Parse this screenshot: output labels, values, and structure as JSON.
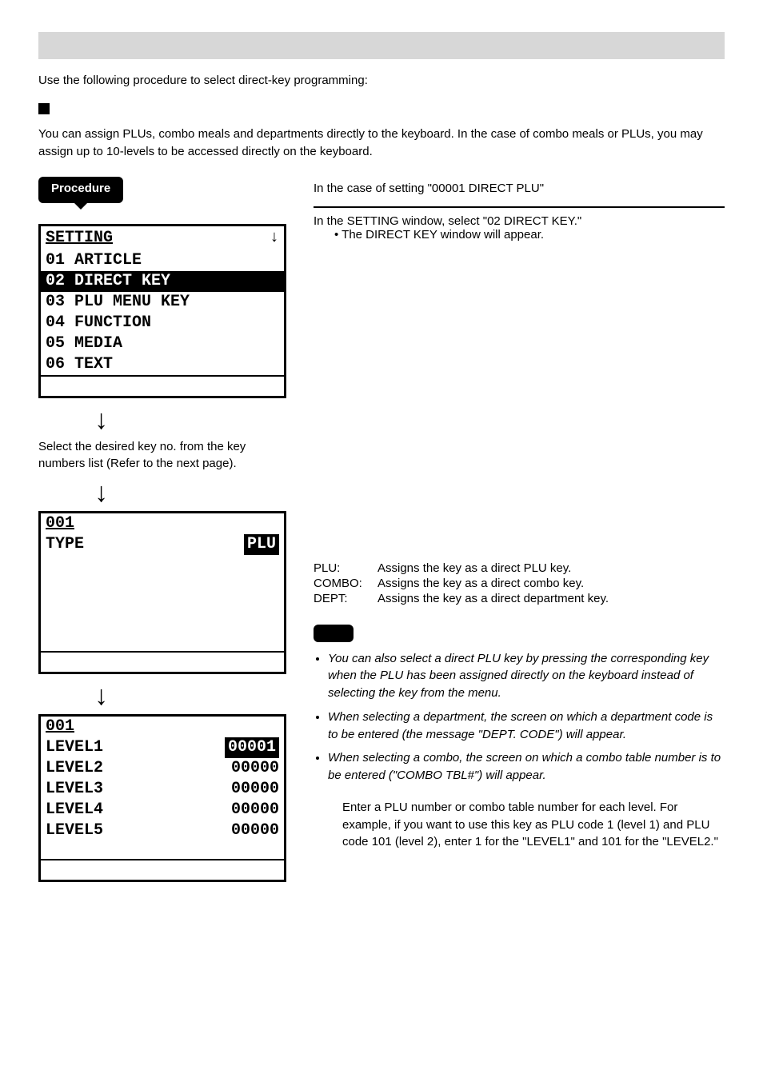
{
  "intro": "Use the following procedure to select direct-key programming:",
  "desc": "You can assign PLUs, combo meals and departments directly to the keyboard. In the case of combo meals or PLUs, you may assign up to 10-levels to be accessed directly on the keyboard.",
  "procedure_label": "Procedure",
  "case_line": "In the case of setting \"00001 DIRECT PLU\"",
  "step1": "In the SETTING window, select \"02 DIRECT KEY.\"",
  "step1_sub": "The DIRECT KEY window will appear.",
  "selnote": "Select the desired key no. from the key numbers list (Refer to the next page).",
  "lcd1": {
    "title": "SETTING",
    "down_glyph": "↓",
    "items": [
      "01 ARTICLE",
      "02 DIRECT KEY",
      "03 PLU MENU KEY",
      "04 FUNCTION",
      "05 MEDIA",
      "06 TEXT"
    ],
    "selected_index": 1
  },
  "lcd2": {
    "title": "001",
    "type_label": "TYPE",
    "type_value": "PLU"
  },
  "lcd3": {
    "title": "001",
    "rows": [
      {
        "label": "LEVEL1",
        "value": "00001",
        "sel": true
      },
      {
        "label": "LEVEL2",
        "value": "00000",
        "sel": false
      },
      {
        "label": "LEVEL3",
        "value": "00000",
        "sel": false
      },
      {
        "label": "LEVEL4",
        "value": "00000",
        "sel": false
      },
      {
        "label": "LEVEL5",
        "value": "00000",
        "sel": false
      }
    ]
  },
  "defs": [
    {
      "term": "PLU:",
      "text": "Assigns the key as a direct PLU key."
    },
    {
      "term": "COMBO:",
      "text": "Assigns the key as a direct combo key."
    },
    {
      "term": "DEPT:",
      "text": "Assigns the key as a direct department key."
    }
  ],
  "notes": [
    "You can also select a direct PLU key by pressing the corresponding key when the PLU has been assigned directly on the keyboard instead of selecting the key from the menu.",
    "When selecting a department, the screen on which a department code is to be entered (the message \"DEPT. CODE\") will appear.",
    "When selecting a combo, the screen on which a combo table number is to be entered (\"COMBO TBL#\") will appear."
  ],
  "rt_step": "Enter a PLU number or combo table number for each level. For example, if you want to use this key as PLU code 1 (level 1) and PLU code 101 (level 2), enter 1 for the \"LEVEL1\" and 101 for the \"LEVEL2.\"",
  "arrow_glyph": "↓",
  "colors": {
    "bar": "#d7d7d7",
    "black": "#000000",
    "white": "#ffffff"
  }
}
